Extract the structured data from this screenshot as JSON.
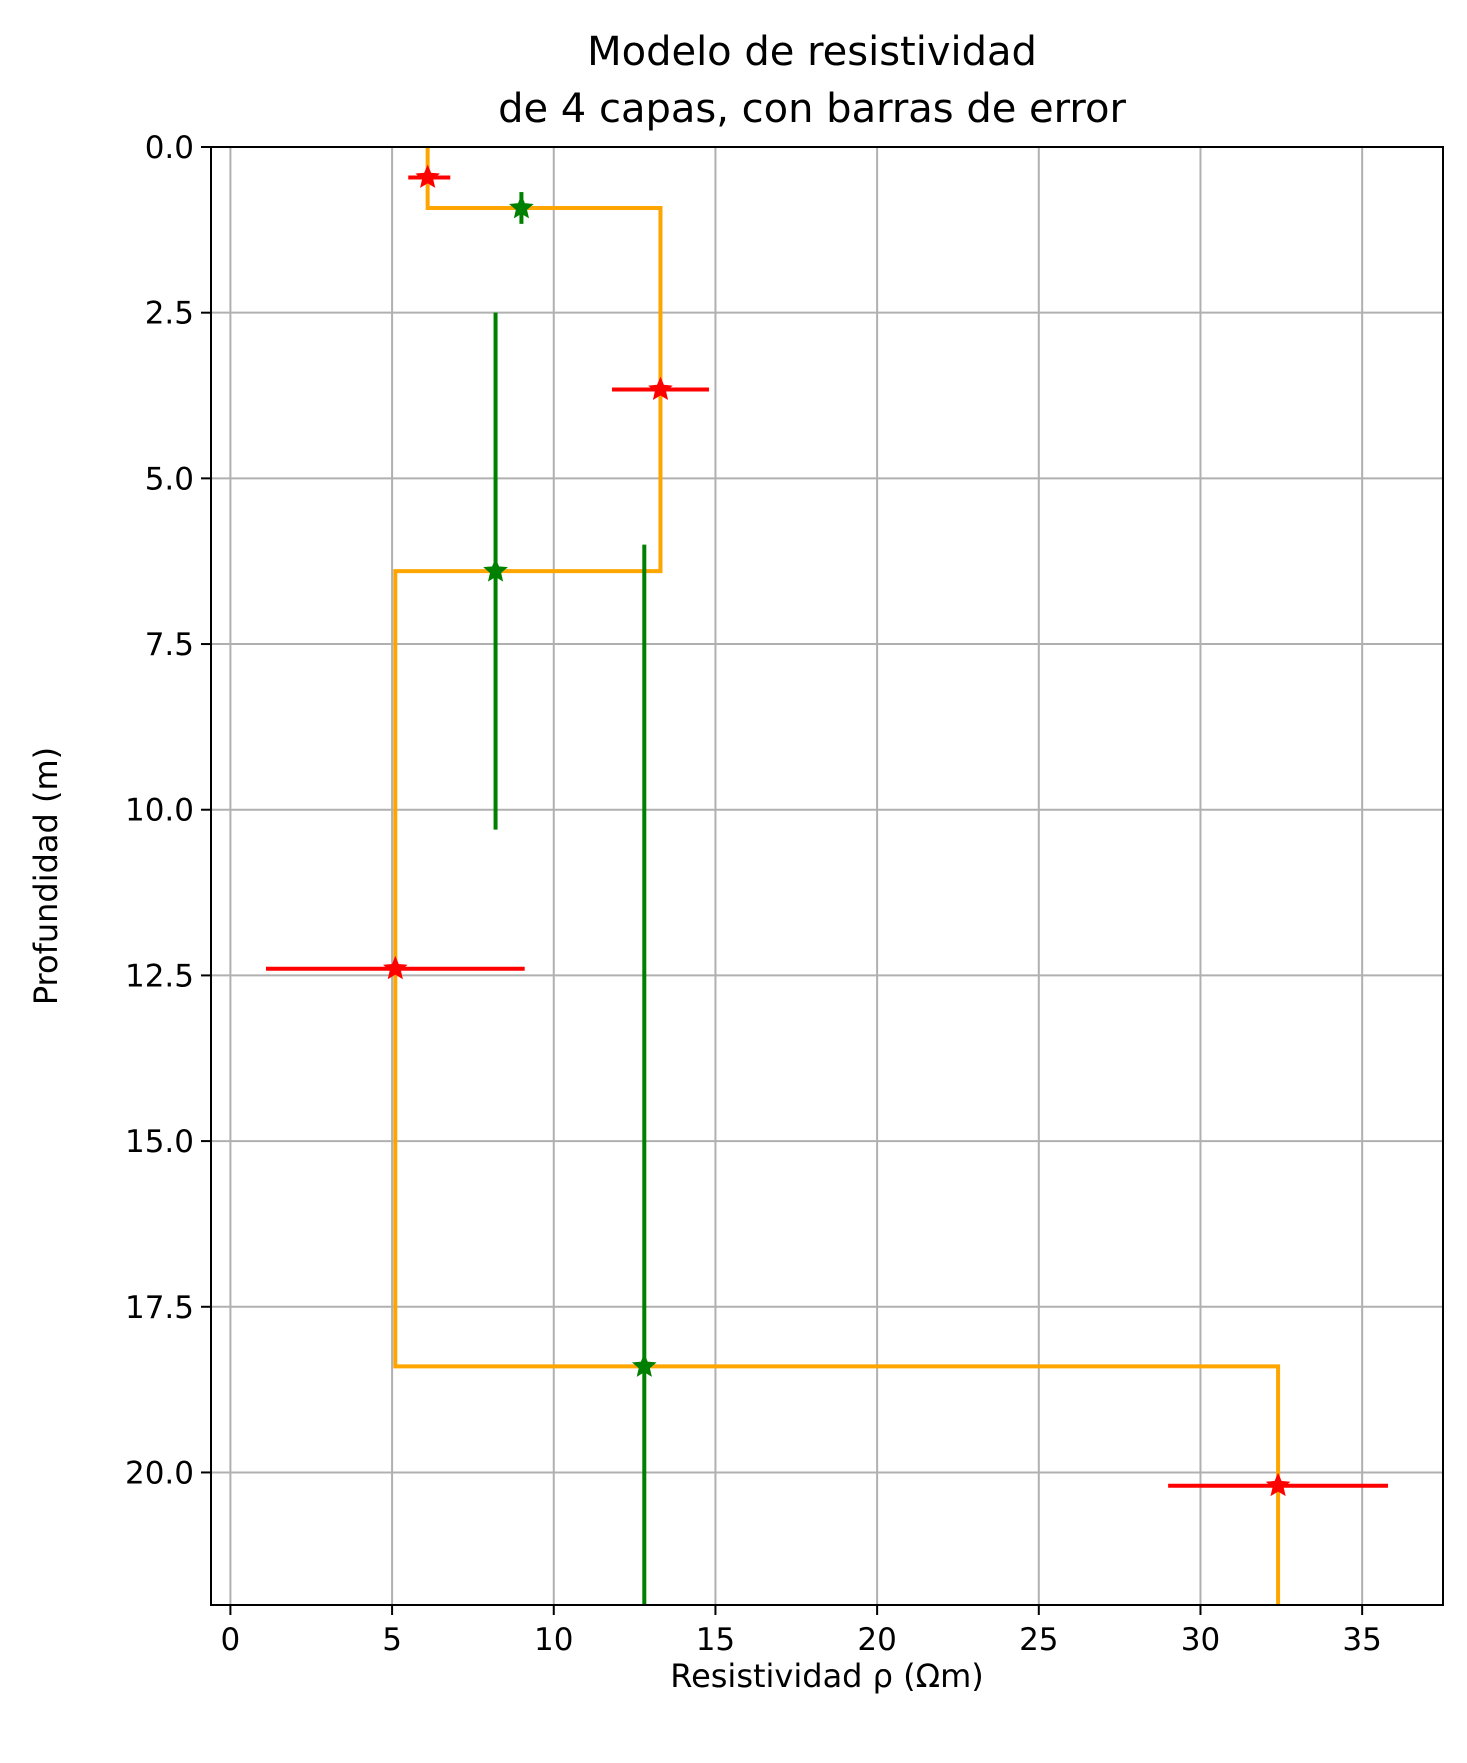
{
  "chart_data": {
    "type": "line",
    "title_lines": [
      "Modelo de resistividad",
      "de 4 capas, con barras de error"
    ],
    "xlabel": "Resistividad ρ (Ωm)",
    "ylabel": "Profundidad (m)",
    "xlim": [
      -0.6,
      37.5
    ],
    "ylim": [
      22.0,
      0.0
    ],
    "y_inverted": true,
    "grid": true,
    "x_ticks": [
      0,
      5,
      10,
      15,
      20,
      25,
      30,
      35
    ],
    "x_tick_labels": [
      "0",
      "5",
      "10",
      "15",
      "20",
      "25",
      "30",
      "35"
    ],
    "y_ticks": [
      0.0,
      2.5,
      5.0,
      7.5,
      10.0,
      12.5,
      15.0,
      17.5,
      20.0
    ],
    "y_tick_labels": [
      "0.0",
      "2.5",
      "5.0",
      "7.5",
      "10.0",
      "12.5",
      "15.0",
      "17.5",
      "20.0"
    ],
    "colors": {
      "model": "#ffa500",
      "resistivity_error": "#ff0000",
      "thickness_error": "#008000"
    },
    "series": [
      {
        "kind": "step",
        "color": "#ffa500",
        "points": [
          [
            6.1,
            0.0
          ],
          [
            6.1,
            0.92
          ],
          [
            13.3,
            0.92
          ],
          [
            13.3,
            6.4
          ],
          [
            5.1,
            6.4
          ],
          [
            5.1,
            18.4
          ],
          [
            32.4,
            18.4
          ],
          [
            32.4,
            22.0
          ]
        ]
      },
      {
        "kind": "horizontal-errorbars",
        "color": "#ff0000",
        "marker": "star",
        "points": [
          {
            "x": 6.1,
            "y": 0.46,
            "xerr_low": 5.5,
            "xerr_high": 6.8
          },
          {
            "x": 13.3,
            "y": 3.66,
            "xerr_low": 11.8,
            "xerr_high": 14.8
          },
          {
            "x": 5.1,
            "y": 12.4,
            "xerr_low": 1.1,
            "xerr_high": 9.1
          },
          {
            "x": 32.4,
            "y": 20.2,
            "xerr_low": 29.0,
            "xerr_high": 35.8
          }
        ]
      },
      {
        "kind": "vertical-errorbars",
        "color": "#008000",
        "marker": "star",
        "points": [
          {
            "x": 9.0,
            "y": 0.92,
            "yerr_low": 0.68,
            "yerr_high": 1.16
          },
          {
            "x": 8.2,
            "y": 6.4,
            "yerr_low": 2.5,
            "yerr_high": 10.3
          },
          {
            "x": 12.8,
            "y": 18.4,
            "yerr_low": 6.0,
            "yerr_high": 22.0
          }
        ]
      }
    ]
  }
}
